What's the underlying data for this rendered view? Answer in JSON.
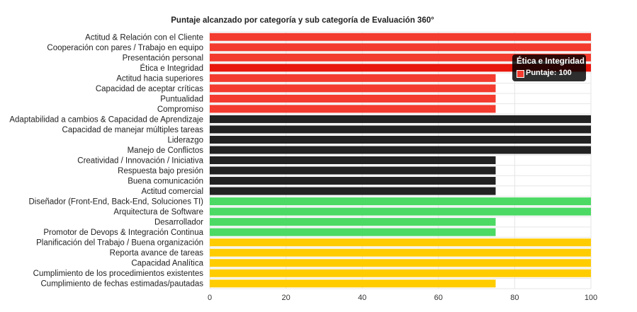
{
  "chart_data": {
    "type": "bar",
    "orientation": "horizontal",
    "title": "Puntaje alcanzado por categoría y sub categoría de Evaluación 360°",
    "xlim": [
      0,
      100
    ],
    "xticks": [
      "0",
      "20",
      "40",
      "60",
      "80",
      "100"
    ],
    "grid": true,
    "categories": [
      "Actitud & Relación con el Cliente",
      "Cooperación con pares / Trabajo en equipo",
      "Presentación personal",
      "Ética e Integridad",
      "Actitud hacia superiores",
      "Capacidad de aceptar críticas",
      "Puntualidad",
      "Compromiso",
      "Adaptabilidad a cambios &  Capacidad de Aprendizaje",
      "Capacidad de manejar múltiples tareas",
      "Liderazgo",
      "Manejo de Conflictos",
      "Creatividad / Innovación / Iniciativa",
      "Respuesta bajo presión",
      "Buena comunicación",
      "Actitud comercial",
      "Diseñador (Front-End, Back-End, Soluciones TI)",
      "Arquitectura de Software",
      "Desarrollador",
      "Promotor de Devops & Integración Continua",
      "Planificación del Trabajo / Buena organización",
      "Reporta avance de tareas",
      "Capacidad Analítica",
      "Cumplimiento de los procedimientos existentes",
      "Cumplimiento de fechas estimadas/pautadas"
    ],
    "values": [
      100,
      100,
      100,
      100,
      75,
      75,
      75,
      75,
      100,
      100,
      100,
      100,
      75,
      75,
      75,
      75,
      100,
      100,
      75,
      75,
      100,
      100,
      100,
      100,
      75
    ],
    "bar_colors": [
      "#f33b2f",
      "#f33b2f",
      "#f33b2f",
      "#e8160c",
      "#f33b2f",
      "#f33b2f",
      "#f33b2f",
      "#f33b2f",
      "#222222",
      "#222222",
      "#222222",
      "#222222",
      "#222222",
      "#222222",
      "#222222",
      "#222222",
      "#4cd964",
      "#4cd964",
      "#4cd964",
      "#4cd964",
      "#ffcc00",
      "#ffcc00",
      "#ffcc00",
      "#ffcc00",
      "#ffcc00"
    ],
    "highlighted_index": 3
  },
  "tooltip": {
    "title": "Ética e Integridad",
    "line": "Puntaje: 100",
    "swatch_color": "#f33b2f"
  }
}
